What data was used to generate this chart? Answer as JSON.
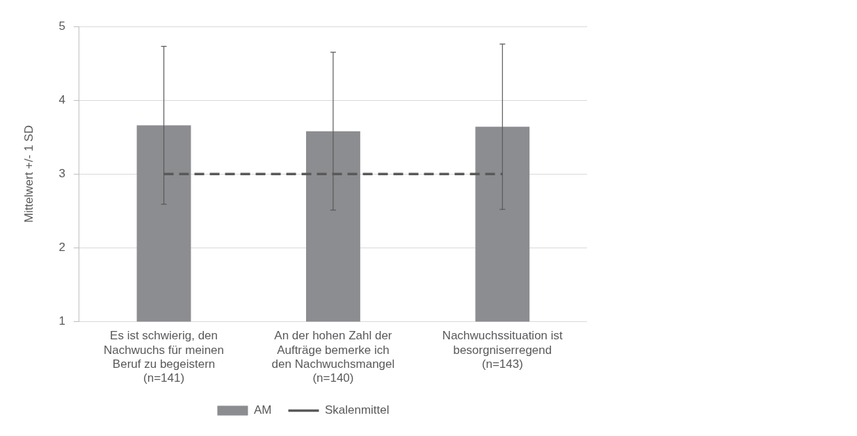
{
  "chart_data": {
    "type": "bar",
    "ylabel": "Mittelwert +/- 1 SD",
    "categories": [
      "Es ist schwierig, den\nNachwuchs für meinen\nBeruf zu begeistern\n(n=141)",
      "An der hohen Zahl der\nAufträge bemerke ich\nden Nachwuchsmangel\n(n=140)",
      "Nachwuchssituation ist\nbesorgniserregend\n(n=143)"
    ],
    "series": [
      {
        "name": "AM",
        "color": "#8c8d90",
        "values": [
          3.66,
          3.58,
          3.64
        ],
        "errors": [
          1.07,
          1.07,
          1.12
        ]
      },
      {
        "name": "Skalenmittel",
        "type": "line",
        "color": "#595959",
        "values": [
          3,
          3,
          3
        ],
        "line_style": "dashed",
        "marker": "none"
      }
    ],
    "ylim": [
      1,
      5
    ],
    "yticks": [
      1,
      2,
      3,
      4,
      5
    ],
    "grid": "y",
    "legend": "bottom"
  }
}
